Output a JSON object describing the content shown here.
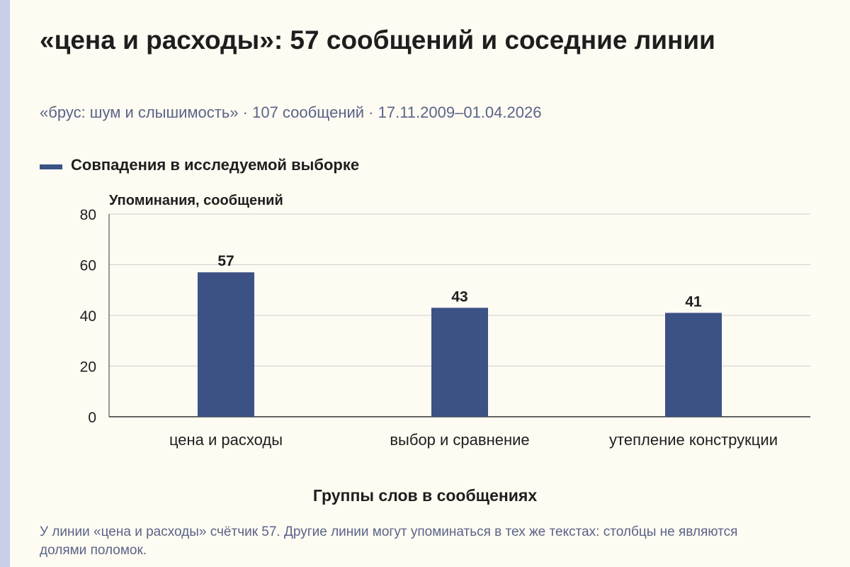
{
  "header": {
    "title": "«цена и расходы»: 57 сообщений и соседние линии",
    "subtitle": "«брус: шум и слышимость» · 107 сообщений · 17.11.2009–01.04.2026"
  },
  "legend": {
    "label": "Совпадения в исследуемой выборке"
  },
  "footer": {
    "note": "У линии «цена и расходы» счётчик 57. Другие линии могут упоминаться в тех же текстах: столбцы не являются долями поломок."
  },
  "colors": {
    "bar": "#3c5285",
    "grid": "#cfcfcf",
    "axis": "#555555"
  },
  "chart_data": {
    "type": "bar",
    "title": "«цена и расходы»: 57 сообщений и соседние линии",
    "subtitle": "«брус: шум и слышимость» · 107 сообщений · 17.11.2009–01.04.2026",
    "xlabel": "Группы слов в сообщениях",
    "ylabel": "Упоминания, сообщений",
    "categories": [
      "цена и расходы",
      "выбор и сравнение",
      "утепление конструкции"
    ],
    "series": [
      {
        "name": "Совпадения в исследуемой выборке",
        "values": [
          57,
          43,
          41
        ]
      }
    ],
    "ylim": [
      0,
      80
    ],
    "yticks": [
      0,
      20,
      40,
      60,
      80
    ],
    "grid": true,
    "legend_position": "top-left",
    "data_labels": true
  }
}
